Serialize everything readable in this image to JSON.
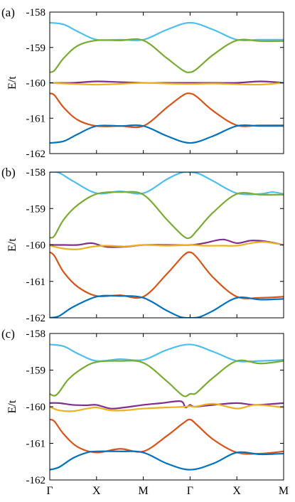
{
  "chart_data": [
    {
      "type": "line",
      "panel_label": "(a)",
      "ylabel": "E/t",
      "yticks": [
        "-158",
        "-159",
        "-160",
        "-161",
        "-162"
      ],
      "ylim": [
        -162,
        -158
      ],
      "xlim": [
        0,
        5
      ],
      "x_tick_labels": [
        "Γ",
        "X",
        "M",
        "Γ",
        "X",
        "M"
      ],
      "grid": false,
      "series": [
        {
          "color": "#4dbeee",
          "x": [
            0,
            0.3,
            0.6,
            1,
            1.5,
            2,
            2.5,
            3,
            3.5,
            4,
            4.5,
            5
          ],
          "y": [
            -158.3,
            -158.35,
            -158.55,
            -158.78,
            -158.78,
            -158.78,
            -158.5,
            -158.3,
            -158.5,
            -158.78,
            -158.78,
            -158.78
          ]
        },
        {
          "color": "#77ac30",
          "x": [
            0,
            0.1,
            0.3,
            0.6,
            1,
            1.5,
            2,
            2.5,
            2.85,
            3,
            3.15,
            3.5,
            4,
            4.5,
            5
          ],
          "y": [
            -159.7,
            -159.65,
            -159.3,
            -158.95,
            -158.8,
            -158.8,
            -158.8,
            -159.3,
            -159.65,
            -159.7,
            -159.6,
            -159.2,
            -158.8,
            -158.82,
            -158.82
          ]
        },
        {
          "color": "#7e2f8e",
          "x": [
            0,
            0.5,
            1,
            1.5,
            2,
            2.5,
            3,
            3.5,
            4,
            4.5,
            5
          ],
          "y": [
            -160.0,
            -160.0,
            -159.96,
            -159.98,
            -160.0,
            -160.0,
            -160.0,
            -160.0,
            -160.0,
            -159.96,
            -160.0
          ]
        },
        {
          "color": "#edb120",
          "x": [
            0,
            0.5,
            1,
            1.5,
            2,
            2.5,
            3,
            3.5,
            4,
            4.5,
            5
          ],
          "y": [
            -160.0,
            -160.03,
            -160.05,
            -160.03,
            -160.0,
            -160.02,
            -160.03,
            -160.02,
            -160.04,
            -160.05,
            -160.0
          ]
        },
        {
          "color": "#d95319",
          "x": [
            0,
            0.1,
            0.3,
            0.6,
            1,
            1.5,
            2,
            2.5,
            2.85,
            3,
            3.15,
            3.5,
            4,
            4.5,
            5
          ],
          "y": [
            -160.3,
            -160.35,
            -160.7,
            -161.05,
            -161.22,
            -161.22,
            -161.22,
            -160.7,
            -160.35,
            -160.3,
            -160.4,
            -160.8,
            -161.2,
            -161.2,
            -161.2
          ]
        },
        {
          "color": "#0072bd",
          "x": [
            0,
            0.3,
            0.6,
            1,
            1.5,
            2,
            2.5,
            3,
            3.5,
            4,
            4.5,
            5
          ],
          "y": [
            -161.7,
            -161.65,
            -161.45,
            -161.22,
            -161.22,
            -161.22,
            -161.5,
            -161.7,
            -161.5,
            -161.22,
            -161.22,
            -161.22
          ]
        }
      ]
    },
    {
      "type": "line",
      "panel_label": "(b)",
      "ylabel": "E/t",
      "yticks": [
        "-158",
        "-159",
        "-160",
        "-161",
        "-162"
      ],
      "ylim": [
        -162,
        -158
      ],
      "xlim": [
        0,
        5
      ],
      "x_tick_labels": [
        "Γ",
        "X",
        "M",
        "Γ",
        "X",
        "M"
      ],
      "grid": false,
      "series": [
        {
          "color": "#4dbeee",
          "x": [
            0,
            0.2,
            0.5,
            1,
            1.5,
            2,
            2.5,
            2.8,
            3,
            3.2,
            3.5,
            4,
            4.5,
            4.75,
            5
          ],
          "y": [
            -158.0,
            -158.02,
            -158.25,
            -158.58,
            -158.53,
            -158.58,
            -158.2,
            -158.02,
            -158.0,
            -158.05,
            -158.25,
            -158.58,
            -158.6,
            -158.55,
            -158.6
          ]
        },
        {
          "color": "#77ac30",
          "x": [
            0,
            0.1,
            0.3,
            0.6,
            1,
            1.5,
            2,
            2.5,
            2.85,
            3,
            3.15,
            3.5,
            4,
            4.5,
            5
          ],
          "y": [
            -159.8,
            -159.75,
            -159.3,
            -158.9,
            -158.6,
            -158.55,
            -158.62,
            -159.3,
            -159.75,
            -159.8,
            -159.6,
            -159.1,
            -158.6,
            -158.62,
            -158.62
          ]
        },
        {
          "color": "#7e2f8e",
          "x": [
            0,
            0.3,
            0.6,
            0.9,
            1.2,
            1.6,
            2,
            2.5,
            3,
            3.3,
            3.7,
            4,
            4.3,
            4.6,
            5
          ],
          "y": [
            -160.0,
            -160.0,
            -160.0,
            -159.95,
            -160.05,
            -160.05,
            -160.0,
            -160.0,
            -160.0,
            -159.95,
            -159.85,
            -159.95,
            -159.88,
            -159.9,
            -160.0
          ]
        },
        {
          "color": "#edb120",
          "x": [
            0,
            0.3,
            0.6,
            0.9,
            1.2,
            1.6,
            2,
            2.5,
            3,
            3.3,
            3.7,
            4,
            4.3,
            4.6,
            5
          ],
          "y": [
            -160.02,
            -160.1,
            -160.12,
            -160.05,
            -160.02,
            -160.04,
            -160.0,
            -160.02,
            -160.0,
            -160.02,
            -160.02,
            -160.02,
            -159.95,
            -159.92,
            -160.0
          ]
        },
        {
          "color": "#d95319",
          "x": [
            0,
            0.1,
            0.3,
            0.6,
            1,
            1.5,
            2,
            2.5,
            2.85,
            3,
            3.15,
            3.5,
            4,
            4.5,
            5
          ],
          "y": [
            -160.2,
            -160.3,
            -160.75,
            -161.15,
            -161.4,
            -161.38,
            -161.42,
            -160.8,
            -160.3,
            -160.2,
            -160.35,
            -160.9,
            -161.42,
            -161.45,
            -161.42
          ]
        },
        {
          "color": "#0072bd",
          "x": [
            0,
            0.2,
            0.5,
            1,
            1.5,
            2,
            2.5,
            2.8,
            3,
            3.2,
            3.5,
            4,
            4.5,
            5
          ],
          "y": [
            -162.0,
            -161.95,
            -161.7,
            -161.42,
            -161.4,
            -161.45,
            -161.8,
            -161.98,
            -162.0,
            -161.98,
            -161.8,
            -161.45,
            -161.5,
            -161.48
          ]
        }
      ]
    },
    {
      "type": "line",
      "panel_label": "(c)",
      "ylabel": "E/t",
      "yticks": [
        "-158",
        "-159",
        "-160",
        "-161",
        "-162"
      ],
      "ylim": [
        -162,
        -158
      ],
      "xlim": [
        0,
        5
      ],
      "x_tick_labels": [
        "Γ",
        "X",
        "M",
        "Γ",
        "X",
        "M"
      ],
      "grid": false,
      "series": [
        {
          "color": "#4dbeee",
          "x": [
            0,
            0.3,
            0.6,
            1,
            1.5,
            2,
            2.5,
            3,
            3.5,
            4,
            4.5,
            5
          ],
          "y": [
            -158.3,
            -158.35,
            -158.55,
            -158.75,
            -158.7,
            -158.72,
            -158.45,
            -158.3,
            -158.5,
            -158.75,
            -158.75,
            -158.72
          ]
        },
        {
          "color": "#77ac30",
          "x": [
            0,
            0.1,
            0.2,
            0.4,
            0.7,
            1,
            1.5,
            2,
            2.5,
            2.85,
            3,
            3.1,
            3.2,
            3.5,
            4,
            4.5,
            5
          ],
          "y": [
            -159.65,
            -159.7,
            -159.6,
            -159.25,
            -158.95,
            -158.78,
            -158.75,
            -158.8,
            -159.3,
            -159.7,
            -159.65,
            -159.65,
            -159.55,
            -159.2,
            -158.75,
            -158.82,
            -158.75
          ]
        },
        {
          "color": "#7e2f8e",
          "x": [
            0,
            0.2,
            0.5,
            0.8,
            1,
            1.3,
            1.6,
            2,
            2.4,
            2.8,
            2.9,
            3,
            3.1,
            3.5,
            4,
            4.4,
            5
          ],
          "y": [
            -159.9,
            -159.9,
            -159.95,
            -159.96,
            -159.95,
            -160.05,
            -160.02,
            -159.95,
            -159.9,
            -159.85,
            -160.02,
            -159.95,
            -160.0,
            -159.95,
            -159.9,
            -159.95,
            -159.9
          ]
        },
        {
          "color": "#edb120",
          "x": [
            0,
            0.2,
            0.5,
            0.8,
            1,
            1.3,
            1.6,
            2,
            2.5,
            2.9,
            3,
            3.1,
            3.5,
            4,
            4.4,
            5
          ],
          "y": [
            -160.0,
            -160.1,
            -160.12,
            -160.05,
            -160.02,
            -160.1,
            -160.1,
            -160.05,
            -160.02,
            -160.0,
            -159.98,
            -160.0,
            -159.92,
            -160.05,
            -159.95,
            -160.02
          ]
        },
        {
          "color": "#d95319",
          "x": [
            0,
            0.1,
            0.3,
            0.6,
            1,
            1.5,
            2,
            2.5,
            2.85,
            3,
            3.15,
            3.5,
            4,
            4.5,
            5
          ],
          "y": [
            -160.35,
            -160.4,
            -160.75,
            -161.1,
            -161.25,
            -161.15,
            -161.22,
            -160.8,
            -160.45,
            -160.35,
            -160.5,
            -160.9,
            -161.25,
            -161.28,
            -161.22
          ]
        },
        {
          "color": "#0072bd",
          "x": [
            0,
            0.2,
            0.5,
            0.8,
            1,
            1.5,
            2,
            2.5,
            3,
            3.5,
            4,
            4.5,
            5
          ],
          "y": [
            -161.72,
            -161.65,
            -161.4,
            -161.25,
            -161.22,
            -161.22,
            -161.25,
            -161.55,
            -161.72,
            -161.55,
            -161.25,
            -161.3,
            -161.28
          ]
        }
      ]
    }
  ]
}
